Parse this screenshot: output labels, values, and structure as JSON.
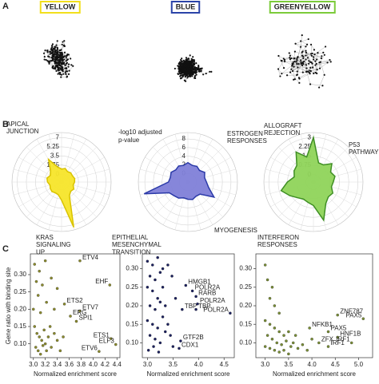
{
  "panels": [
    "A",
    "B",
    "C"
  ],
  "modules": [
    {
      "name": "YELLOW",
      "color": "#f2df1c"
    },
    {
      "name": "BLUE",
      "color": "#2b44a8"
    },
    {
      "name": "GREENYELLOW",
      "color": "#7ccb3a"
    }
  ],
  "chart_data": [
    {
      "type": "radar",
      "color": "#f7e52a",
      "edge_color": "#d9c300",
      "categories": [
        null,
        null,
        null,
        null,
        null,
        null,
        null,
        null,
        null,
        null,
        null,
        "KRAS SIGNALING UP",
        null,
        null,
        null,
        null,
        null,
        null,
        null,
        null,
        null,
        null,
        "APICAL JUNCTION",
        null
      ],
      "values": [
        1,
        1.2,
        0.8,
        1,
        0.9,
        1.1,
        1,
        0.8,
        1.2,
        1,
        1.5,
        7.5,
        2,
        1,
        0.9,
        1.1,
        1,
        0.8,
        1.2,
        1.4,
        1,
        1.5,
        3.5,
        1.5
      ],
      "rlim": [
        -1.5,
        8
      ],
      "rticks": [
        0,
        1.75,
        3.5,
        5.25,
        7
      ]
    },
    {
      "type": "radar",
      "color": "#7f7fd8",
      "edge_color": "#2b3aa8",
      "rlabel": [
        "-log10 adjusted",
        "p-value"
      ],
      "categories": [
        null,
        null,
        null,
        null,
        null,
        null,
        null,
        null,
        "MYOGENESIS",
        null,
        null,
        null,
        null,
        null,
        null,
        null,
        null,
        "EPITHELIAL MESENCHYMAL TRANSITION",
        null,
        null,
        null,
        null,
        null,
        null
      ],
      "values": [
        2.5,
        2,
        2.2,
        1.8,
        2.5,
        2,
        2.3,
        3,
        5,
        2,
        1.8,
        2.2,
        2,
        1.8,
        2.3,
        2.5,
        3,
        8.5,
        2.5,
        2.2,
        2.5,
        2,
        2.3,
        2
      ],
      "rlim": [
        -2,
        9.5
      ],
      "rticks": [
        0,
        2,
        4,
        6,
        8
      ]
    },
    {
      "type": "radar",
      "color": "#8fd45a",
      "edge_color": "#3f8f24",
      "categories": [
        "ALLOGRAFT REJECTION",
        null,
        null,
        "P53 PATHWAY",
        null,
        null,
        null,
        null,
        null,
        null,
        null,
        "INTERFERON RESPONSES",
        null,
        null,
        null,
        null,
        null,
        null,
        null,
        null,
        null,
        null,
        "ESTROGEN RESPONSES",
        null
      ],
      "values": [
        3,
        1,
        1,
        1.5,
        1,
        1.2,
        1,
        0.9,
        1.2,
        1.1,
        1.4,
        2.6,
        1.3,
        1.1,
        1,
        1.2,
        1.6,
        2.1,
        1.5,
        1,
        1.2,
        1.3,
        2.2,
        1.5
      ],
      "rlim": [
        -0.6,
        3.4
      ],
      "rticks": [
        0,
        0.75,
        1.5,
        2.25,
        3
      ]
    },
    {
      "type": "scatter",
      "color": "#8c8c2c",
      "ylabel": "Gene ratio with binding site",
      "xlabel": "Normalized enrichment score",
      "x": [
        3.78,
        4.28,
        3.52,
        3.78,
        3.62,
        3.72,
        4.3,
        4.38,
        4.1,
        3.02,
        3.1,
        3.2,
        3.05,
        3.15,
        3.3,
        3.08,
        3.22,
        3.4,
        3.0,
        3.12,
        3.35,
        3.02,
        3.06,
        3.1,
        3.14,
        3.18,
        3.2,
        3.25,
        3.3,
        3.04,
        3.08,
        3.12,
        3.22,
        3.35,
        3.4,
        3.45,
        3.5,
        3.28,
        3.16
      ],
      "y": [
        0.34,
        0.27,
        0.215,
        0.195,
        0.18,
        0.165,
        0.115,
        0.098,
        0.078,
        0.33,
        0.31,
        0.34,
        0.28,
        0.27,
        0.29,
        0.24,
        0.22,
        0.26,
        0.2,
        0.19,
        0.2,
        0.15,
        0.13,
        0.12,
        0.11,
        0.14,
        0.1,
        0.12,
        0.09,
        0.09,
        0.08,
        0.07,
        0.08,
        0.13,
        0.11,
        0.08,
        0.12,
        0.15,
        0.095
      ],
      "labels": [
        "ETV4",
        "EHF",
        "ETS2",
        "ETV7",
        "ERG",
        "SPI1",
        "ETS1",
        "ELF3",
        "ETV6",
        null,
        null,
        null,
        null,
        null,
        null,
        null,
        null,
        null,
        null,
        null,
        null,
        null,
        null,
        null,
        null,
        null,
        null,
        null,
        null,
        null,
        null,
        null,
        null,
        null,
        null,
        null,
        null,
        null,
        null
      ],
      "xlim": [
        2.95,
        4.45
      ],
      "ylim": [
        0.06,
        0.36
      ],
      "xticks": [
        {
          "value": 3.0,
          "label": "3.0"
        },
        3.2,
        3.4,
        3.6,
        3.8,
        {
          "value": 4.0,
          "label": "4.0"
        },
        4.2,
        4.4
      ],
      "yticks": [
        {
          "value": 0.1,
          "label": "0.10"
        },
        0.15,
        {
          "value": 0.2,
          "label": "0.20"
        },
        0.25,
        {
          "value": 0.3,
          "label": "0.30"
        }
      ]
    },
    {
      "type": "scatter",
      "color": "#1c2160",
      "xlabel": "Normalized enrichment score",
      "x": [
        3.75,
        3.88,
        3.95,
        3.68,
        3.95,
        3.98,
        4.62,
        3.65,
        3.62,
        3.0,
        3.1,
        3.2,
        3.3,
        3.05,
        3.15,
        3.25,
        3.4,
        3.0,
        3.1,
        3.2,
        3.3,
        3.05,
        3.15,
        3.25,
        3.35,
        3.0,
        3.1,
        3.2,
        3.3,
        3.4,
        3.05,
        3.15,
        3.25,
        3.35,
        3.45,
        3.02,
        3.12,
        3.22,
        3.5,
        3.55,
        3.48
      ],
      "y": [
        0.255,
        0.24,
        0.225,
        0.19,
        0.19,
        0.205,
        0.18,
        0.105,
        0.085,
        0.32,
        0.31,
        0.33,
        0.3,
        0.28,
        0.27,
        0.29,
        0.31,
        0.25,
        0.24,
        0.22,
        0.25,
        0.2,
        0.19,
        0.21,
        0.2,
        0.16,
        0.15,
        0.14,
        0.17,
        0.15,
        0.12,
        0.11,
        0.1,
        0.13,
        0.12,
        0.08,
        0.09,
        0.075,
        0.09,
        0.22,
        0.28
      ],
      "labels": [
        "HMGB1",
        "POLR2A",
        "RARB",
        "TBP",
        "TBP",
        "POLR2A",
        "POLR2A",
        "GTF2B",
        "CDX1",
        null,
        null,
        null,
        null,
        null,
        null,
        null,
        null,
        null,
        null,
        null,
        null,
        null,
        null,
        null,
        null,
        null,
        null,
        null,
        null,
        null,
        null,
        null,
        null,
        null,
        null,
        null,
        null,
        null,
        null,
        null,
        null
      ],
      "xlim": [
        2.9,
        4.7
      ],
      "ylim": [
        0.06,
        0.34
      ],
      "xticks": [
        {
          "value": 3.0,
          "label": "3.0"
        },
        3.5,
        {
          "value": 4.0,
          "label": "4.0"
        },
        4.5
      ],
      "yticks": [
        {
          "value": 0.1,
          "label": "0.10"
        },
        0.15,
        {
          "value": 0.2,
          "label": "0.20"
        },
        0.25,
        {
          "value": 0.3,
          "label": "0.30"
        }
      ]
    },
    {
      "type": "scatter",
      "color": "#7a8f36",
      "xlabel": "Normalized enrichment score",
      "x": [
        4.55,
        5.1,
        3.95,
        4.35,
        4.55,
        4.15,
        4.35,
        4.85,
        3.0,
        3.05,
        3.15,
        3.1,
        3.2,
        3.3,
        3.0,
        3.1,
        3.2,
        3.3,
        3.4,
        3.05,
        3.15,
        3.25,
        3.35,
        3.45,
        3.55,
        3.0,
        3.1,
        3.2,
        3.3,
        3.4,
        3.5,
        3.6,
        3.7,
        3.8,
        3.65,
        3.5,
        3.9,
        4.0
      ],
      "y": [
        0.175,
        0.165,
        0.14,
        0.13,
        0.115,
        0.1,
        0.09,
        0.1,
        0.31,
        0.27,
        0.25,
        0.22,
        0.2,
        0.18,
        0.16,
        0.15,
        0.14,
        0.13,
        0.12,
        0.12,
        0.11,
        0.1,
        0.095,
        0.105,
        0.09,
        0.09,
        0.085,
        0.08,
        0.075,
        0.08,
        0.07,
        0.1,
        0.085,
        0.095,
        0.12,
        0.13,
        0.08,
        0.11
      ],
      "labels": [
        "ZNF787",
        "PAX5",
        "NFKB1",
        "PAX5",
        "HNF1B",
        "ZFX",
        "IRF1",
        "IRF1",
        null,
        null,
        null,
        null,
        null,
        null,
        null,
        null,
        null,
        null,
        null,
        null,
        null,
        null,
        null,
        null,
        null,
        null,
        null,
        null,
        null,
        null,
        null,
        null,
        null,
        null,
        null,
        null,
        null,
        null
      ],
      "xlim": [
        2.8,
        5.3
      ],
      "ylim": [
        0.06,
        0.34
      ],
      "xticks": [
        {
          "value": 3.0,
          "label": "3.0"
        },
        3.5,
        {
          "value": 4.0,
          "label": "4.0"
        },
        4.5,
        {
          "value": 5.0,
          "label": "5.0"
        }
      ],
      "yticks": [
        {
          "value": 0.1,
          "label": "0.10"
        },
        0.15,
        {
          "value": 0.2,
          "label": "0.20"
        },
        0.25,
        {
          "value": 0.3,
          "label": "0.30"
        }
      ]
    }
  ]
}
